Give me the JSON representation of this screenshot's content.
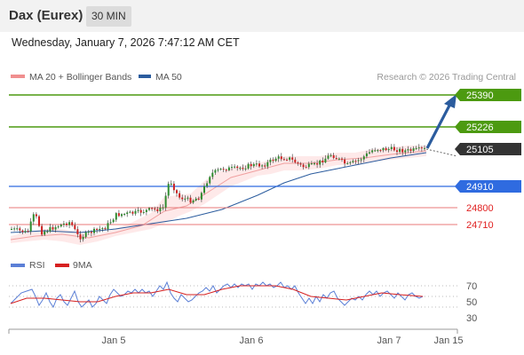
{
  "header": {
    "title": "Dax (Eurex)",
    "timeframe": "30 MIN"
  },
  "datetime": "Wednesday, January 7, 2026 7:47:12 AM CET",
  "legend": {
    "bollinger": {
      "label": "MA 20 + Bollinger Bands",
      "color": "#f08f8f"
    },
    "ma50": {
      "label": "MA 50",
      "color": "#2b5c9e"
    }
  },
  "credit": "Research © 2026 Trading Central",
  "levels": [
    {
      "value": "25390",
      "style": "target",
      "color": "#4c9a10"
    },
    {
      "value": "25226",
      "style": "resistance",
      "color": "#4c9a10"
    },
    {
      "value": "25105",
      "style": "last",
      "color": "#333333"
    },
    {
      "value": "24910",
      "style": "pivot",
      "color": "#2f6be0"
    },
    {
      "value": "24800",
      "style": "support",
      "color": "#e05555"
    },
    {
      "value": "24710",
      "style": "support",
      "color": "#e05555"
    }
  ],
  "rsi_legend": {
    "rsi": {
      "label": "RSI",
      "color": "#5b7fd6"
    },
    "ma": {
      "label": "9MA",
      "color": "#d62020"
    }
  },
  "rsi_ticks": [
    "70",
    "50",
    "30"
  ],
  "x_labels": [
    "Jan 5",
    "Jan 6",
    "Jan 7",
    "Jan 15"
  ],
  "candle_color_up": "#2e8b2e",
  "candle_color_down": "#cc2222",
  "arrow_color": "#2b5c9e"
}
